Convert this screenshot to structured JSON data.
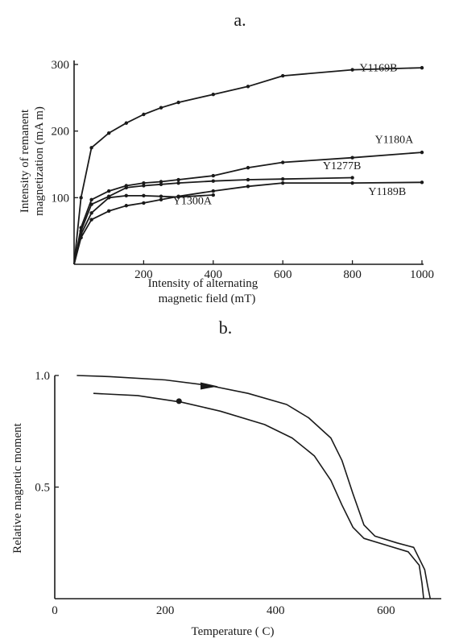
{
  "panel_a_label": "a.",
  "panel_b_label": "b.",
  "chart_data": [
    {
      "type": "line",
      "panel": "a.",
      "xlabel_lines": [
        "Intensity of alternating",
        "magnetic field (mT)"
      ],
      "ylabel_lines": [
        "Intensity of remanent",
        "magnetization (mA m)"
      ],
      "xlim": [
        0,
        1000
      ],
      "ylim": [
        0,
        300
      ],
      "xticks": [
        200,
        400,
        600,
        800,
        1000
      ],
      "yticks": [
        100,
        200,
        300
      ],
      "grid": false,
      "legend": "none (series labelled directly on lines)",
      "series": [
        {
          "name": "Y1169B",
          "x": [
            0,
            20,
            50,
            100,
            150,
            200,
            250,
            300,
            400,
            500,
            600,
            800,
            1000
          ],
          "y": [
            0,
            100,
            175,
            197,
            212,
            225,
            235,
            243,
            255,
            267,
            283,
            292,
            295
          ]
        },
        {
          "name": "Y1180A",
          "x": [
            0,
            20,
            50,
            100,
            150,
            200,
            250,
            300,
            400,
            500,
            600,
            800,
            1000
          ],
          "y": [
            0,
            55,
            97,
            110,
            118,
            122,
            124,
            127,
            133,
            145,
            153,
            160,
            168
          ]
        },
        {
          "name": "Y1277B",
          "x": [
            0,
            20,
            50,
            100,
            150,
            200,
            250,
            300,
            400,
            500,
            600,
            800
          ],
          "y": [
            0,
            50,
            90,
            102,
            115,
            118,
            120,
            122,
            125,
            127,
            128,
            130
          ]
        },
        {
          "name": "Y1189B",
          "x": [
            0,
            20,
            50,
            100,
            150,
            200,
            250,
            300,
            400,
            500,
            600,
            800,
            1000
          ],
          "y": [
            0,
            40,
            67,
            80,
            88,
            92,
            97,
            102,
            110,
            117,
            122,
            122,
            123
          ]
        },
        {
          "name": "Y1300A",
          "x": [
            0,
            20,
            50,
            100,
            150,
            200,
            250,
            300,
            400
          ],
          "y": [
            0,
            45,
            77,
            100,
            103,
            103,
            102,
            101,
            104
          ]
        }
      ],
      "annotations": [
        {
          "text": "Y1169B",
          "x": 875,
          "y": 290
        },
        {
          "text": "Y1180A",
          "x": 920,
          "y": 182
        },
        {
          "text": "Y1277B",
          "x": 770,
          "y": 143
        },
        {
          "text": "Y1189B",
          "x": 900,
          "y": 104
        },
        {
          "text": "Y1300A",
          "x": 340,
          "y": 90
        }
      ]
    },
    {
      "type": "line",
      "panel": "b.",
      "xlabel": "Temperature ( C)",
      "ylabel": "Relative magnetic  moment",
      "xlim": [
        0,
        700
      ],
      "ylim": [
        0,
        1.0
      ],
      "xticks": [
        0,
        200,
        400,
        600
      ],
      "yticks": [
        0.5,
        1.0
      ],
      "ytick_labels": [
        "0.5",
        "1.0"
      ],
      "grid": false,
      "series": [
        {
          "direction": "heating",
          "x": [
            40,
            100,
            200,
            280,
            350,
            420,
            460,
            500,
            520,
            540,
            560,
            580,
            620,
            650,
            670,
            675,
            680
          ],
          "y": [
            1.0,
            0.995,
            0.98,
            0.955,
            0.92,
            0.87,
            0.81,
            0.72,
            0.62,
            0.47,
            0.33,
            0.28,
            0.25,
            0.23,
            0.13,
            0.06,
            0.0
          ]
        },
        {
          "direction": "cooling",
          "x": [
            70,
            150,
            230,
            300,
            380,
            430,
            470,
            500,
            520,
            540,
            560,
            600,
            640,
            660,
            665,
            668
          ],
          "y": [
            0.92,
            0.91,
            0.88,
            0.84,
            0.78,
            0.72,
            0.64,
            0.53,
            0.42,
            0.32,
            0.27,
            0.24,
            0.21,
            0.15,
            0.07,
            0.0
          ]
        }
      ]
    }
  ]
}
